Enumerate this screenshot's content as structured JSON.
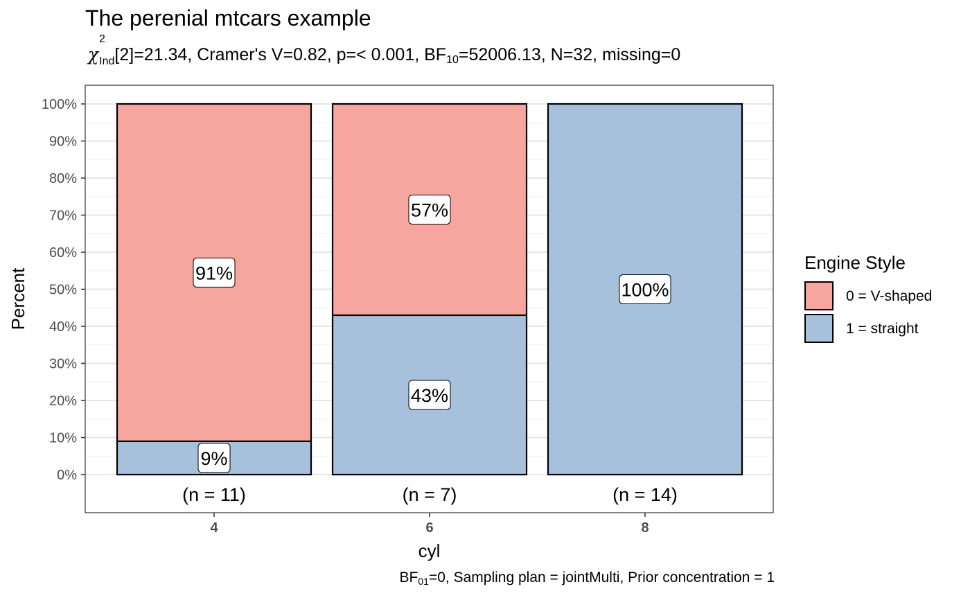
{
  "chart_data": {
    "type": "bar",
    "stacked": true,
    "title": "The perenial mtcars example",
    "subtitle": {
      "chi_symbol": "χ",
      "chi_sup": "2",
      "chi_sub": "Ind",
      "text_a": "[2]=21.34, Cramer's V=0.82, p=< 0.001, BF",
      "bf_sub": "10",
      "text_b": "=52006.13, N=32, missing=0"
    },
    "caption": {
      "bf": "BF",
      "bf_sub": "01",
      "text": "=0, Sampling plan = jointMulti, Prior concentration = 1"
    },
    "xlabel": "cyl",
    "ylabel": "Percent",
    "categories": [
      "4",
      "6",
      "8"
    ],
    "n_labels": [
      "(n = 11)",
      "(n = 7)",
      "(n = 14)"
    ],
    "y_ticks": [
      "0%",
      "10%",
      "20%",
      "30%",
      "40%",
      "50%",
      "60%",
      "70%",
      "80%",
      "90%",
      "100%"
    ],
    "ylim": [
      0,
      100
    ],
    "grid": true,
    "legend": {
      "title": "Engine Style",
      "placement": "right",
      "entries": [
        "0 = V-shaped",
        "1 = straight"
      ]
    },
    "colors": {
      "v_shaped": "#F7A59F",
      "straight": "#A7C1DC"
    },
    "series": [
      {
        "name": "0 = V-shaped",
        "values": [
          91,
          57,
          0
        ],
        "labels": [
          "91%",
          "57%",
          ""
        ]
      },
      {
        "name": "1 = straight",
        "values": [
          9,
          43,
          100
        ],
        "labels": [
          "9%",
          "43%",
          "100%"
        ]
      }
    ]
  }
}
